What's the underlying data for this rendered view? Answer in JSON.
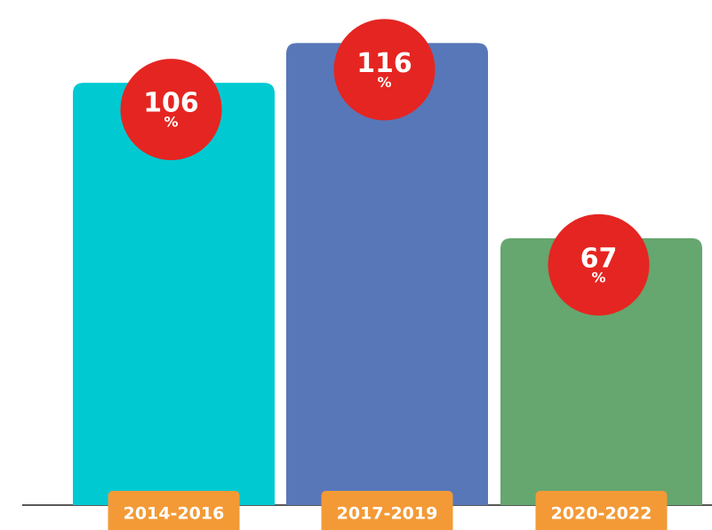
{
  "chart_data": {
    "type": "bar",
    "categories": [
      "2014-2016",
      "2017-2019",
      "2020-2022"
    ],
    "values": [
      106,
      116,
      67
    ],
    "unit": "%",
    "colors": [
      "#00c9d1",
      "#5877b8",
      "#66a66f"
    ],
    "label_color": "#e52521",
    "category_color": "#f39a36"
  }
}
